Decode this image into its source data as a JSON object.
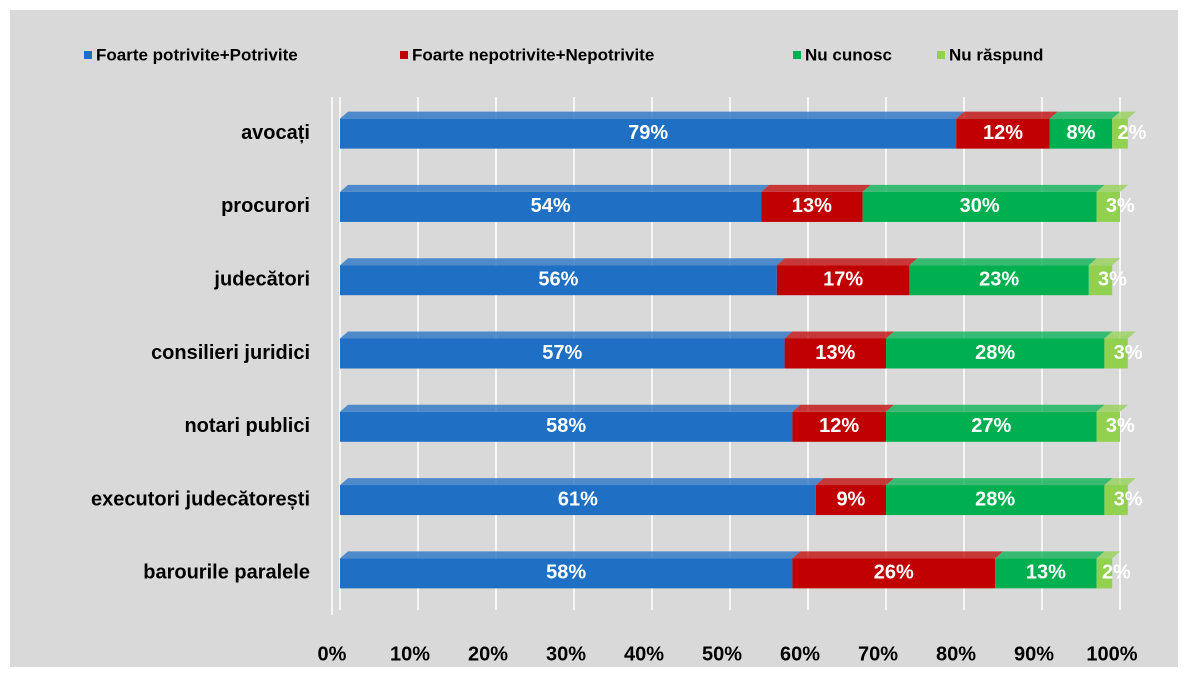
{
  "chart_data": {
    "type": "stacked_barh",
    "categories": [
      "avocați",
      "procurori",
      "judecători",
      "consilieri juridici",
      "notari publici",
      "executori judecătorești",
      "barourile paralele"
    ],
    "series": [
      {
        "name": "Foarte potrivite+Potrivite",
        "color": "#1f6fc4",
        "values": [
          79,
          54,
          56,
          57,
          58,
          61,
          58
        ],
        "value_labels": [
          "79%",
          "54%",
          "56%",
          "57%",
          "58%",
          "61%",
          "58%"
        ]
      },
      {
        "name": "Foarte nepotrivite+Nepotrivite",
        "color": "#c00000",
        "values": [
          12,
          13,
          17,
          13,
          12,
          9,
          26
        ],
        "value_labels": [
          "12%",
          "13%",
          "17%",
          "13%",
          "12%",
          "9%",
          "26%"
        ]
      },
      {
        "name": "Nu cunosc",
        "color": "#00b050",
        "values": [
          8,
          30,
          23,
          28,
          27,
          28,
          13
        ],
        "value_labels": [
          "8%",
          "30%",
          "23%",
          "28%",
          "27%",
          "28%",
          "13%"
        ]
      },
      {
        "name": "Nu răspund",
        "color": "#92d050",
        "values": [
          2,
          3,
          3,
          3,
          3,
          3,
          2
        ],
        "value_labels": [
          "2%",
          "3%",
          "3%",
          "3%",
          "3%",
          "3%",
          "2%"
        ]
      }
    ],
    "xlim": [
      0,
      100
    ],
    "xticks": [
      {
        "value": 0,
        "label": "0%"
      },
      {
        "value": 10,
        "label": "10%"
      },
      {
        "value": 20,
        "label": "20%"
      },
      {
        "value": 30,
        "label": "30%"
      },
      {
        "value": 40,
        "label": "40%"
      },
      {
        "value": 50,
        "label": "50%"
      },
      {
        "value": 60,
        "label": "60%"
      },
      {
        "value": 70,
        "label": "70%"
      },
      {
        "value": 80,
        "label": "80%"
      },
      {
        "value": 90,
        "label": "90%"
      },
      {
        "value": 100,
        "label": "100%"
      }
    ],
    "grid": true,
    "legend": "top"
  }
}
